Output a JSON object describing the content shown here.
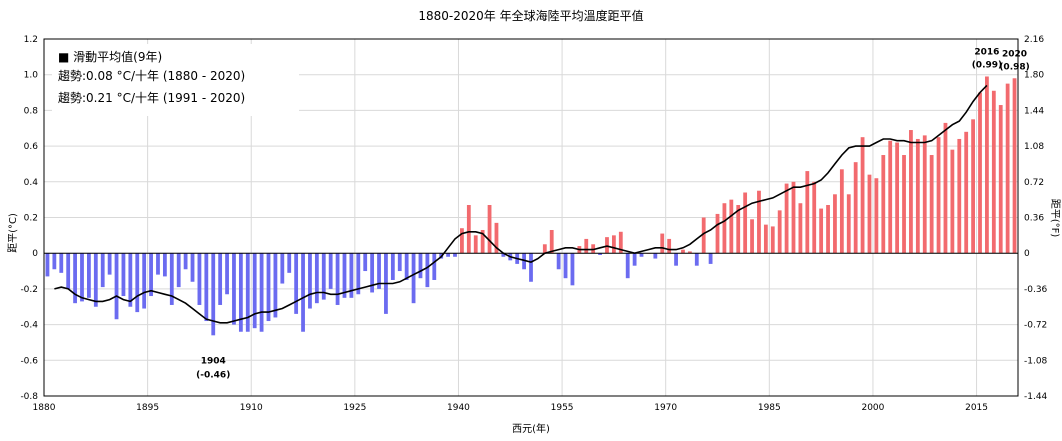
{
  "chart_data": {
    "type": "bar",
    "title": "1880-2020年 年全球海陸平均溫度距平值",
    "xlabel": "西元(年)",
    "ylabel": "距平(°C)",
    "y2label": "距平(°F)",
    "ylim": [
      -0.8,
      1.2
    ],
    "y2lim": [
      -1.44,
      2.16
    ],
    "xlim": [
      1880,
      2020
    ],
    "yticks": [
      "-0.8",
      "-0.6",
      "-0.4",
      "-0.2",
      "0",
      "0.2",
      "0.4",
      "0.6",
      "0.8",
      "1.0",
      "1.2"
    ],
    "y2ticks": [
      "-1.44",
      "-1.08",
      "-0.72",
      "-0.36",
      "0",
      "0.36",
      "0.72",
      "1.08",
      "1.44",
      "1.80",
      "2.16"
    ],
    "xticks": [
      "1880",
      "1895",
      "1910",
      "1925",
      "1940",
      "1955",
      "1970",
      "1985",
      "2000",
      "2015"
    ],
    "grid": true,
    "colors": {
      "positive": "#f26a6e",
      "negative": "#6b6bf0",
      "smooth": "#000000"
    },
    "series": [
      {
        "name": "距平",
        "x": [
          1880,
          1881,
          1882,
          1883,
          1884,
          1885,
          1886,
          1887,
          1888,
          1889,
          1890,
          1891,
          1892,
          1893,
          1894,
          1895,
          1896,
          1897,
          1898,
          1899,
          1900,
          1901,
          1902,
          1903,
          1904,
          1905,
          1906,
          1907,
          1908,
          1909,
          1910,
          1911,
          1912,
          1913,
          1914,
          1915,
          1916,
          1917,
          1918,
          1919,
          1920,
          1921,
          1922,
          1923,
          1924,
          1925,
          1926,
          1927,
          1928,
          1929,
          1930,
          1931,
          1932,
          1933,
          1934,
          1935,
          1936,
          1937,
          1938,
          1939,
          1940,
          1941,
          1942,
          1943,
          1944,
          1945,
          1946,
          1947,
          1948,
          1949,
          1950,
          1951,
          1952,
          1953,
          1954,
          1955,
          1956,
          1957,
          1958,
          1959,
          1960,
          1961,
          1962,
          1963,
          1964,
          1965,
          1966,
          1967,
          1968,
          1969,
          1970,
          1971,
          1972,
          1973,
          1974,
          1975,
          1976,
          1977,
          1978,
          1979,
          1980,
          1981,
          1982,
          1983,
          1984,
          1985,
          1986,
          1987,
          1988,
          1989,
          1990,
          1991,
          1992,
          1993,
          1994,
          1995,
          1996,
          1997,
          1998,
          1999,
          2000,
          2001,
          2002,
          2003,
          2004,
          2005,
          2006,
          2007,
          2008,
          2009,
          2010,
          2011,
          2012,
          2013,
          2014,
          2015,
          2016,
          2017,
          2018,
          2019,
          2020
        ],
        "values": [
          -0.13,
          -0.09,
          -0.11,
          -0.2,
          -0.28,
          -0.27,
          -0.25,
          -0.3,
          -0.19,
          -0.12,
          -0.37,
          -0.24,
          -0.3,
          -0.33,
          -0.31,
          -0.24,
          -0.12,
          -0.13,
          -0.29,
          -0.19,
          -0.09,
          -0.16,
          -0.29,
          -0.38,
          -0.46,
          -0.29,
          -0.23,
          -0.4,
          -0.44,
          -0.44,
          -0.42,
          -0.44,
          -0.38,
          -0.36,
          -0.17,
          -0.11,
          -0.34,
          -0.44,
          -0.31,
          -0.28,
          -0.26,
          -0.2,
          -0.29,
          -0.25,
          -0.25,
          -0.23,
          -0.1,
          -0.22,
          -0.2,
          -0.34,
          -0.15,
          -0.1,
          -0.15,
          -0.28,
          -0.14,
          -0.19,
          -0.15,
          -0.03,
          -0.02,
          -0.02,
          0.14,
          0.27,
          0.1,
          0.13,
          0.27,
          0.17,
          -0.02,
          -0.04,
          -0.06,
          -0.09,
          -0.16,
          0.0,
          0.05,
          0.13,
          -0.09,
          -0.14,
          -0.18,
          0.04,
          0.08,
          0.05,
          -0.01,
          0.09,
          0.1,
          0.12,
          -0.14,
          -0.07,
          -0.02,
          0.0,
          -0.03,
          0.11,
          0.08,
          -0.07,
          0.02,
          0.01,
          -0.07,
          0.2,
          -0.06,
          0.22,
          0.28,
          0.3,
          0.27,
          0.34,
          0.19,
          0.35,
          0.16,
          0.15,
          0.24,
          0.39,
          0.4,
          0.28,
          0.46,
          0.4,
          0.25,
          0.27,
          0.33,
          0.47,
          0.33,
          0.51,
          0.65,
          0.44,
          0.42,
          0.55,
          0.63,
          0.62,
          0.55,
          0.69,
          0.64,
          0.66,
          0.55,
          0.65,
          0.73,
          0.58,
          0.64,
          0.68,
          0.75,
          0.9,
          0.99,
          0.91,
          0.83,
          0.95,
          0.98
        ]
      },
      {
        "name": "滑動平均值(9年)",
        "x": [
          1881,
          1882,
          1883,
          1884,
          1885,
          1886,
          1887,
          1888,
          1889,
          1890,
          1891,
          1892,
          1893,
          1894,
          1895,
          1896,
          1897,
          1898,
          1899,
          1900,
          1901,
          1902,
          1903,
          1904,
          1905,
          1906,
          1907,
          1908,
          1909,
          1910,
          1911,
          1912,
          1913,
          1914,
          1915,
          1916,
          1917,
          1918,
          1919,
          1920,
          1921,
          1922,
          1923,
          1924,
          1925,
          1926,
          1927,
          1928,
          1929,
          1930,
          1931,
          1932,
          1933,
          1934,
          1935,
          1936,
          1937,
          1938,
          1939,
          1940,
          1941,
          1942,
          1943,
          1944,
          1945,
          1946,
          1947,
          1948,
          1949,
          1950,
          1951,
          1952,
          1953,
          1954,
          1955,
          1956,
          1957,
          1958,
          1959,
          1960,
          1961,
          1962,
          1963,
          1964,
          1965,
          1966,
          1967,
          1968,
          1969,
          1970,
          1971,
          1972,
          1973,
          1974,
          1975,
          1976,
          1977,
          1978,
          1979,
          1980,
          1981,
          1982,
          1983,
          1984,
          1985,
          1986,
          1987,
          1988,
          1989,
          1990,
          1991,
          1992,
          1993,
          1994,
          1995,
          1996,
          1997,
          1998,
          1999,
          2000,
          2001,
          2002,
          2003,
          2004,
          2005,
          2006,
          2007,
          2008,
          2009,
          2010,
          2011,
          2012,
          2013,
          2014,
          2015,
          2016
        ],
        "values": [
          -0.2,
          -0.19,
          -0.2,
          -0.23,
          -0.25,
          -0.26,
          -0.27,
          -0.27,
          -0.26,
          -0.24,
          -0.26,
          -0.27,
          -0.24,
          -0.22,
          -0.21,
          -0.22,
          -0.23,
          -0.24,
          -0.26,
          -0.28,
          -0.31,
          -0.34,
          -0.37,
          -0.38,
          -0.39,
          -0.39,
          -0.38,
          -0.37,
          -0.36,
          -0.34,
          -0.33,
          -0.33,
          -0.32,
          -0.31,
          -0.29,
          -0.27,
          -0.25,
          -0.23,
          -0.22,
          -0.22,
          -0.23,
          -0.23,
          -0.22,
          -0.21,
          -0.2,
          -0.19,
          -0.18,
          -0.17,
          -0.17,
          -0.17,
          -0.16,
          -0.14,
          -0.12,
          -0.1,
          -0.08,
          -0.05,
          -0.02,
          0.03,
          0.08,
          0.11,
          0.12,
          0.12,
          0.11,
          0.07,
          0.03,
          0.0,
          -0.02,
          -0.03,
          -0.04,
          -0.05,
          -0.03,
          0.0,
          0.01,
          0.02,
          0.03,
          0.03,
          0.02,
          0.02,
          0.02,
          0.03,
          0.04,
          0.03,
          0.02,
          0.01,
          0.0,
          0.01,
          0.02,
          0.03,
          0.03,
          0.02,
          0.02,
          0.03,
          0.05,
          0.08,
          0.11,
          0.13,
          0.16,
          0.18,
          0.21,
          0.24,
          0.26,
          0.28,
          0.29,
          0.3,
          0.31,
          0.33,
          0.35,
          0.37,
          0.37,
          0.38,
          0.39,
          0.41,
          0.45,
          0.5,
          0.55,
          0.59,
          0.6,
          0.6,
          0.6,
          0.62,
          0.64,
          0.64,
          0.63,
          0.63,
          0.62,
          0.62,
          0.62,
          0.63,
          0.66,
          0.69,
          0.72,
          0.74,
          0.79,
          0.85,
          0.9,
          0.94
        ]
      }
    ],
    "legend": {
      "smooth_label": "■ 滑動平均值(9年)",
      "trend1": "趨勢:0.08 °C/十年 (1880 - 2020)",
      "trend2": "趨勢:0.21 °C/十年 (1991 - 2020)"
    },
    "annotations": [
      {
        "year": 1904,
        "label1": "1904",
        "label2": "(-0.46)",
        "value": -0.46,
        "position": "below"
      },
      {
        "year": 2016,
        "label1": "2016",
        "label2": "(0.99)",
        "value": 0.99,
        "position": "above"
      },
      {
        "year": 2020,
        "label1": "2020",
        "label2": "(0.98)",
        "value": 0.98,
        "position": "above"
      }
    ]
  }
}
